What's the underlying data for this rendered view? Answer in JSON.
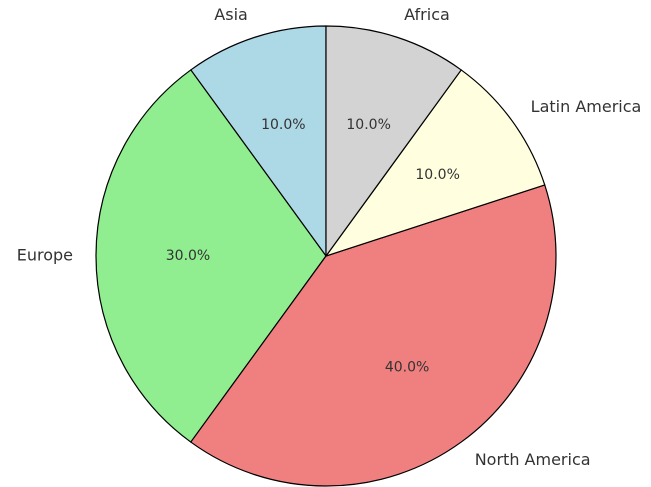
{
  "chart_data": {
    "type": "pie",
    "categories": [
      "Asia",
      "Europe",
      "North America",
      "Latin America",
      "Africa"
    ],
    "values": [
      10,
      30,
      40,
      10,
      10
    ],
    "value_labels": [
      "10.0%",
      "30.0%",
      "40.0%",
      "10.0%",
      "10.0%"
    ],
    "colors": [
      "#add8e6",
      "#90ee90",
      "#f08080",
      "#ffffe0",
      "#d3d3d3"
    ],
    "start_angle": 90,
    "counterclockwise": true
  }
}
